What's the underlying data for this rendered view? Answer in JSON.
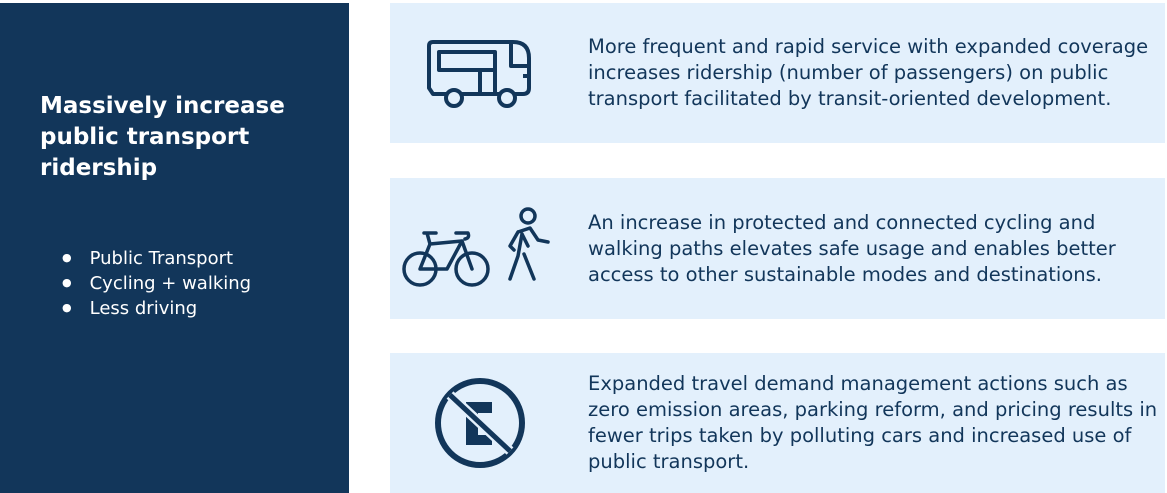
{
  "sidebar": {
    "title": "Massively increase public transport ridership",
    "items": [
      "Public Transport",
      "Cycling + walking",
      "Less driving"
    ]
  },
  "cards": [
    {
      "icon": "bus-icon",
      "text": "More frequent and rapid service with expanded coverage increases ridership (number of passengers) on public transport facilitated by transit-oriented development."
    },
    {
      "icon": "bicycle-pedestrian-icon",
      "text": "An increase in protected and connected cycling and walking paths elevates safe usage and enables better access to other sustainable modes and destinations."
    },
    {
      "icon": "no-emission-car-icon",
      "text": "Expanded travel demand management actions such as zero emission areas, parking reform, and pricing results in fewer trips taken by polluting cars and increased use of public transport."
    }
  ],
  "colors": {
    "navy": "#12365a",
    "light": "#e3f0fc"
  }
}
